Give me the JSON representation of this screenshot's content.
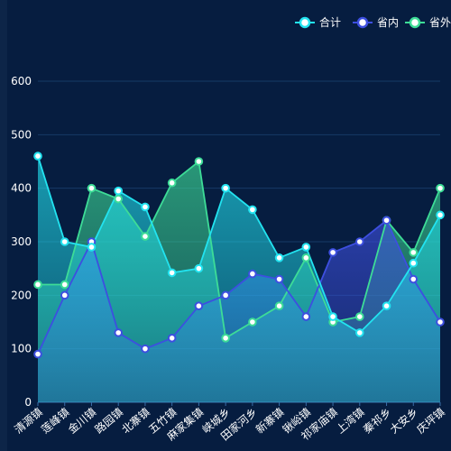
{
  "chart_data": {
    "type": "area",
    "categories": [
      "清源镇",
      "莲峰镇",
      "金川镇",
      "路园镇",
      "北寨镇",
      "五竹镇",
      "麻家集镇",
      "峡城乡",
      "田家河乡",
      "新寨镇",
      "锹峪镇",
      "祁家庙镇",
      "上湾镇",
      "秦祁乡",
      "大安乡",
      "庆坪镇"
    ],
    "ylim": [
      0,
      600
    ],
    "yticks": [
      0,
      100,
      200,
      300,
      400,
      500,
      600
    ],
    "grid": true,
    "legend_position": "top-right",
    "series": [
      {
        "name": "合计",
        "color": "#22e3f0",
        "values": [
          460,
          300,
          290,
          395,
          365,
          242,
          250,
          400,
          360,
          270,
          290,
          160,
          130,
          180,
          260,
          350
        ]
      },
      {
        "name": "省内",
        "color": "#3d4fe0",
        "values": [
          90,
          200,
          300,
          130,
          100,
          120,
          180,
          200,
          240,
          230,
          160,
          280,
          300,
          340,
          230,
          150
        ]
      },
      {
        "name": "省外",
        "color": "#3ddc97",
        "values": [
          220,
          220,
          400,
          380,
          310,
          410,
          450,
          120,
          150,
          180,
          270,
          150,
          160,
          340,
          280,
          400
        ]
      }
    ]
  }
}
